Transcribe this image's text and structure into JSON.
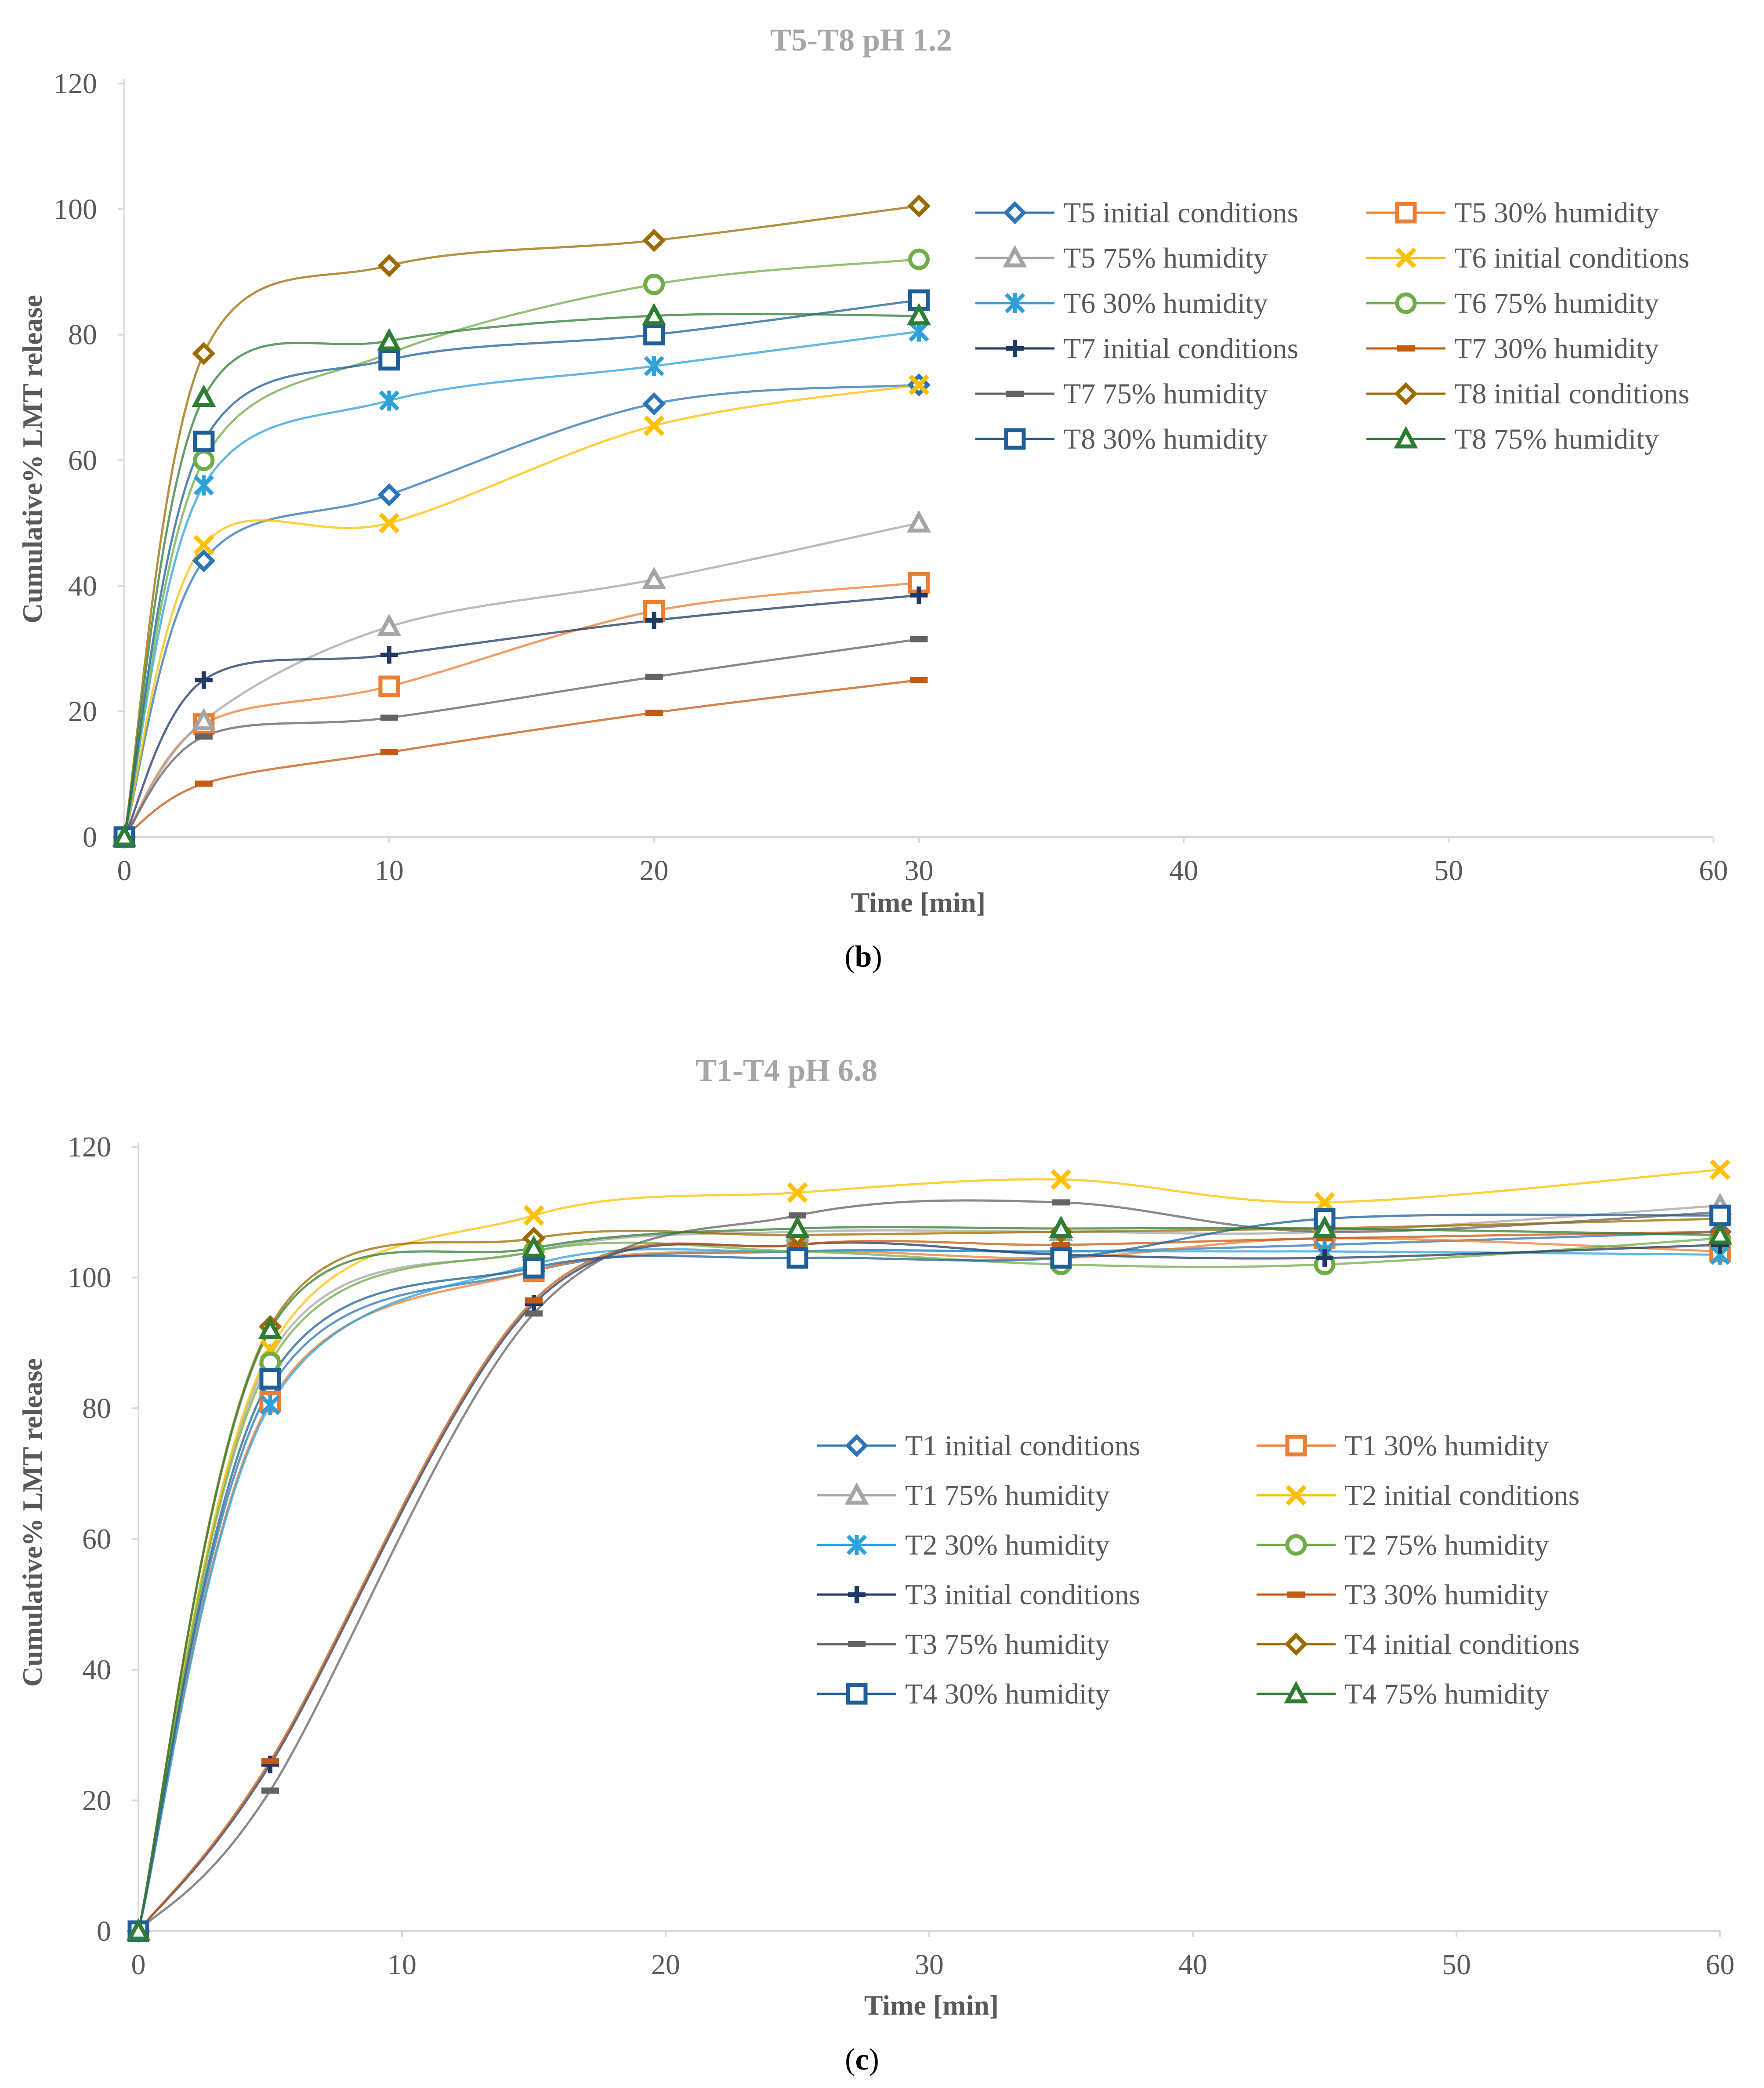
{
  "colors": {
    "axis": "#d9d9d9",
    "title": "#a6a6a6",
    "text": "#595959"
  },
  "figure": {
    "panel_b_label": {
      "open": "(",
      "letter": "b",
      "close": ")"
    },
    "panel_c_label": {
      "open": "(",
      "letter": "c",
      "close": ")"
    }
  },
  "chart_data": [
    {
      "type": "line",
      "title": "T5-T8 pH 1.2",
      "xlabel": "Time [min]",
      "ylabel": "Cumulative% LMT release",
      "xlim": [
        0,
        60
      ],
      "ylim": [
        0,
        120
      ],
      "xticks": [
        0,
        10,
        20,
        30,
        40,
        50,
        60
      ],
      "yticks": [
        0,
        20,
        40,
        60,
        80,
        100,
        120
      ],
      "grid": false,
      "legend_position": "upper-right",
      "x": [
        0,
        3,
        10,
        20,
        30
      ],
      "series": [
        {
          "name": "T5 initial conditions",
          "color": "#2e75b6",
          "marker": "diamond",
          "values": [
            0,
            44,
            54.5,
            69,
            72
          ]
        },
        {
          "name": "T5 30% humidity",
          "color": "#ed7d31",
          "marker": "square",
          "values": [
            0,
            18,
            24,
            36,
            40.5
          ]
        },
        {
          "name": "T5 75% humidity",
          "color": "#a5a5a5",
          "marker": "triangle",
          "values": [
            0,
            18.5,
            33.5,
            41,
            50
          ]
        },
        {
          "name": "T6 initial conditions",
          "color": "#ffc000",
          "marker": "x",
          "values": [
            0,
            46.5,
            50,
            65.5,
            72
          ]
        },
        {
          "name": "T6 30% humidity",
          "color": "#2ea1d9",
          "marker": "star",
          "values": [
            0,
            56,
            69.5,
            75,
            80.5
          ]
        },
        {
          "name": "T6 75% humidity",
          "color": "#70ad47",
          "marker": "circle",
          "values": [
            0,
            60,
            77,
            88,
            92
          ]
        },
        {
          "name": "T7 initial conditions",
          "color": "#1f3864",
          "marker": "plus",
          "values": [
            0,
            25,
            29,
            34.5,
            38.5
          ]
        },
        {
          "name": "T7 30% humidity",
          "color": "#c55a11",
          "marker": "dash",
          "values": [
            0,
            8.5,
            13.5,
            19.8,
            25
          ]
        },
        {
          "name": "T7 75% humidity",
          "color": "#636363",
          "marker": "dash",
          "values": [
            0,
            16,
            19,
            25.5,
            31.5
          ]
        },
        {
          "name": "T8 initial conditions",
          "color": "#9c6b00",
          "marker": "diamond",
          "values": [
            0,
            77,
            91,
            95,
            100.5
          ]
        },
        {
          "name": "T8 30% humidity",
          "color": "#1e5f99",
          "marker": "square",
          "values": [
            0,
            63,
            76,
            80,
            85.5
          ]
        },
        {
          "name": "T8 75% humidity",
          "color": "#2e7d32",
          "marker": "triangle",
          "values": [
            0,
            70,
            79,
            83,
            83
          ]
        }
      ]
    },
    {
      "type": "line",
      "title": "T1-T4 pH 6.8",
      "xlabel": "Time [min]",
      "ylabel": "Cumulative% LMT release",
      "xlim": [
        0,
        60
      ],
      "ylim": [
        0,
        120
      ],
      "xticks": [
        0,
        10,
        20,
        30,
        40,
        50,
        60
      ],
      "yticks": [
        0,
        20,
        40,
        60,
        80,
        100,
        120
      ],
      "grid": false,
      "legend_position": "center-right",
      "x": [
        0,
        5,
        15,
        25,
        35,
        45,
        60
      ],
      "series": [
        {
          "name": "T1 initial conditions",
          "color": "#2e75b6",
          "marker": "diamond",
          "values": [
            0,
            83,
            101,
            104,
            104,
            105,
            107
          ]
        },
        {
          "name": "T1 30% humidity",
          "color": "#ed7d31",
          "marker": "square",
          "values": [
            0,
            81,
            101,
            104,
            103,
            106,
            104
          ]
        },
        {
          "name": "T1 75% humidity",
          "color": "#a5a5a5",
          "marker": "triangle",
          "values": [
            0,
            88,
            104,
            107,
            107,
            107,
            111
          ]
        },
        {
          "name": "T2 initial conditions",
          "color": "#ffc000",
          "marker": "x",
          "values": [
            0,
            89,
            109.5,
            113,
            115,
            111.5,
            116.5
          ]
        },
        {
          "name": "T2 30% humidity",
          "color": "#2ea1d9",
          "marker": "star",
          "values": [
            0,
            80.5,
            102,
            104,
            104,
            104,
            103.5
          ]
        },
        {
          "name": "T2 75% humidity",
          "color": "#70ad47",
          "marker": "circle",
          "values": [
            0,
            87,
            104,
            104,
            102,
            102,
            106
          ]
        },
        {
          "name": "T3 initial conditions",
          "color": "#1f3864",
          "marker": "plus",
          "values": [
            0,
            25.5,
            96,
            105,
            103.5,
            103,
            105
          ]
        },
        {
          "name": "T3 30% humidity",
          "color": "#c55a11",
          "marker": "dash",
          "values": [
            0,
            26,
            96.5,
            105,
            105,
            106,
            107
          ]
        },
        {
          "name": "T3 75% humidity",
          "color": "#636363",
          "marker": "dash",
          "values": [
            0,
            21.5,
            94.5,
            109.5,
            111.5,
            107,
            110
          ]
        },
        {
          "name": "T4 initial conditions",
          "color": "#9c6b00",
          "marker": "diamond",
          "values": [
            0,
            92.5,
            106,
            106.5,
            107,
            107.5,
            109
          ]
        },
        {
          "name": "T4 30% humidity",
          "color": "#1e5f99",
          "marker": "square",
          "values": [
            0,
            84.5,
            101.5,
            103,
            103,
            109,
            109.5
          ]
        },
        {
          "name": "T4 75% humidity",
          "color": "#2e7d32",
          "marker": "triangle",
          "values": [
            0,
            92,
            104.5,
            107.5,
            107.5,
            107.5,
            106.5
          ]
        }
      ]
    }
  ]
}
